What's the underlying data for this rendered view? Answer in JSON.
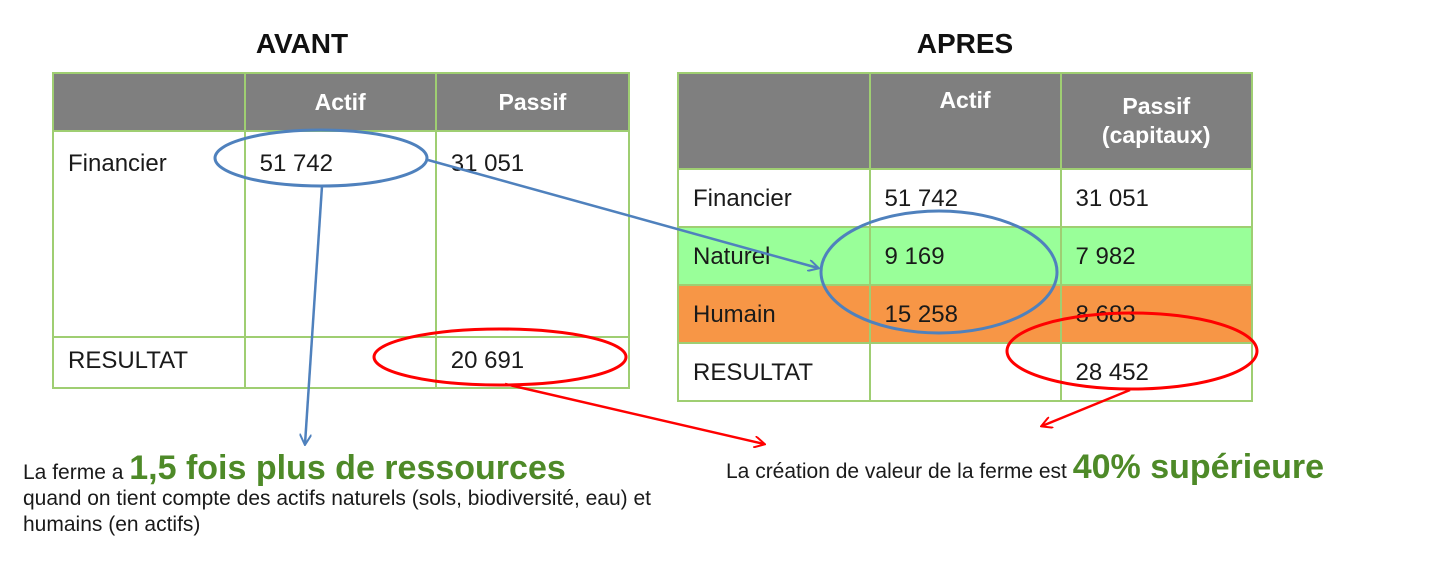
{
  "avant": {
    "title": "AVANT",
    "headers": [
      "",
      "Actif",
      "Passif"
    ],
    "rows": [
      {
        "label": "Financier",
        "actif": "51 742",
        "passif": "31 051"
      },
      {
        "label": "RESULTAT",
        "actif": "",
        "passif": "20 691"
      }
    ]
  },
  "apres": {
    "title": "APRES",
    "headers": [
      "",
      "Actif",
      "Passif\n(capitaux)"
    ],
    "rows": [
      {
        "label": "Financier",
        "actif": "51 742",
        "passif": "31 051",
        "color": "#ffffff"
      },
      {
        "label": "Naturel",
        "actif": "9 169",
        "passif": "7 982",
        "color": "#99ff99"
      },
      {
        "label": "Humain",
        "actif": "15 258",
        "passif": "8 683",
        "color": "#f79646"
      },
      {
        "label": "RESULTAT",
        "actif": "",
        "passif": "28 452",
        "color": "#ffffff"
      }
    ]
  },
  "captions": {
    "left_prefix": "La ferme a ",
    "left_highlight": "1,5 fois plus de ressources",
    "left_rest": "quand on tient compte des actifs naturels (sols, biodiversité, eau) et humains (en actifs)",
    "right_prefix": "La création de valeur de la ferme est ",
    "right_highlight": "40% supérieure"
  },
  "colors": {
    "header_bg": "#7f7f7f",
    "border": "#9fce72",
    "naturel": "#99ff99",
    "humain": "#f79646",
    "blue_annotation": "#4f81bd",
    "red_annotation": "#ff0000",
    "highlight_text": "#4e8a28"
  }
}
